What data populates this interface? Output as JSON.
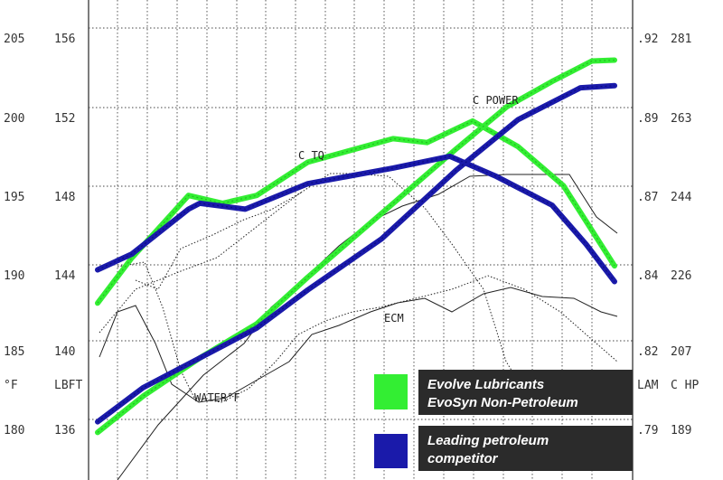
{
  "chart_data": {
    "type": "line",
    "title": "",
    "x_range": [
      0,
      100
    ],
    "left_axes": [
      {
        "name": "°F",
        "ticks": [
          "205",
          "200",
          "195",
          "190",
          "185",
          "180"
        ]
      },
      {
        "name": "LBFT",
        "ticks": [
          "156",
          "152",
          "148",
          "144",
          "140",
          "136"
        ]
      }
    ],
    "right_axes": [
      {
        "name": "LAM",
        "ticks": [
          ".92",
          ".89",
          ".87",
          ".84",
          ".82",
          ".79"
        ]
      },
      {
        "name": "C HP",
        "ticks": [
          "281",
          "263",
          "244",
          "226",
          "207",
          "189"
        ]
      }
    ],
    "grid": true,
    "annotations": [
      "C TQ",
      "C POWER",
      "ECM",
      "WATER°F"
    ],
    "legend": {
      "placement": "bottom-right",
      "entries": [
        {
          "label_lines": [
            "Evolve Lubricants",
            "EvoSyn Non-Petroleum"
          ],
          "color": "#33ee33"
        },
        {
          "label_lines": [
            "Leading petroleum",
            "competitor"
          ],
          "color": "#1a1aaa"
        }
      ]
    },
    "series": [
      {
        "name": "Evolve Lubricants EvoSyn Non-Petroleum",
        "color": "#33ee33",
        "lines": [
          {
            "metric": "C TQ",
            "axis": "LBFT",
            "points": [
              [
                0,
                142.5
              ],
              [
                6,
                144.8
              ],
              [
                16,
                148
              ],
              [
                22,
                147.6
              ],
              [
                28,
                148
              ],
              [
                37,
                149.7
              ],
              [
                52,
                150.9
              ],
              [
                58,
                150.7
              ],
              [
                66,
                151.8
              ],
              [
                74,
                150.5
              ],
              [
                82,
                148.5
              ],
              [
                91,
                144.4
              ]
            ]
          },
          {
            "metric": "C POWER",
            "axis": "C HP",
            "points": [
              [
                0,
                188.5
              ],
              [
                8,
                197
              ],
              [
                18,
                206
              ],
              [
                28,
                214
              ],
              [
                37,
                225
              ],
              [
                50,
                240
              ],
              [
                63,
                255
              ],
              [
                72,
                265
              ],
              [
                80,
                271
              ],
              [
                87,
                275.8
              ],
              [
                91,
                276
              ]
            ]
          }
        ]
      },
      {
        "name": "Leading petroleum competitor",
        "color": "#1a1aaa",
        "lines": [
          {
            "metric": "C TQ",
            "axis": "LBFT",
            "points": [
              [
                0,
                144.2
              ],
              [
                6,
                145
              ],
              [
                16,
                147.3
              ],
              [
                18,
                147.6
              ],
              [
                26,
                147.3
              ],
              [
                37,
                148.6
              ],
              [
                52,
                149.4
              ],
              [
                62,
                150
              ],
              [
                70,
                149
              ],
              [
                80,
                147.5
              ],
              [
                86,
                145.5
              ],
              [
                91,
                143.6
              ]
            ]
          },
          {
            "metric": "C POWER",
            "axis": "C HP",
            "points": [
              [
                0,
                191
              ],
              [
                8,
                199
              ],
              [
                18,
                206
              ],
              [
                28,
                213
              ],
              [
                37,
                222
              ],
              [
                50,
                234
              ],
              [
                63,
                250
              ],
              [
                74,
                262
              ],
              [
                85,
                269.5
              ],
              [
                91,
                270
              ]
            ]
          }
        ]
      }
    ]
  }
}
